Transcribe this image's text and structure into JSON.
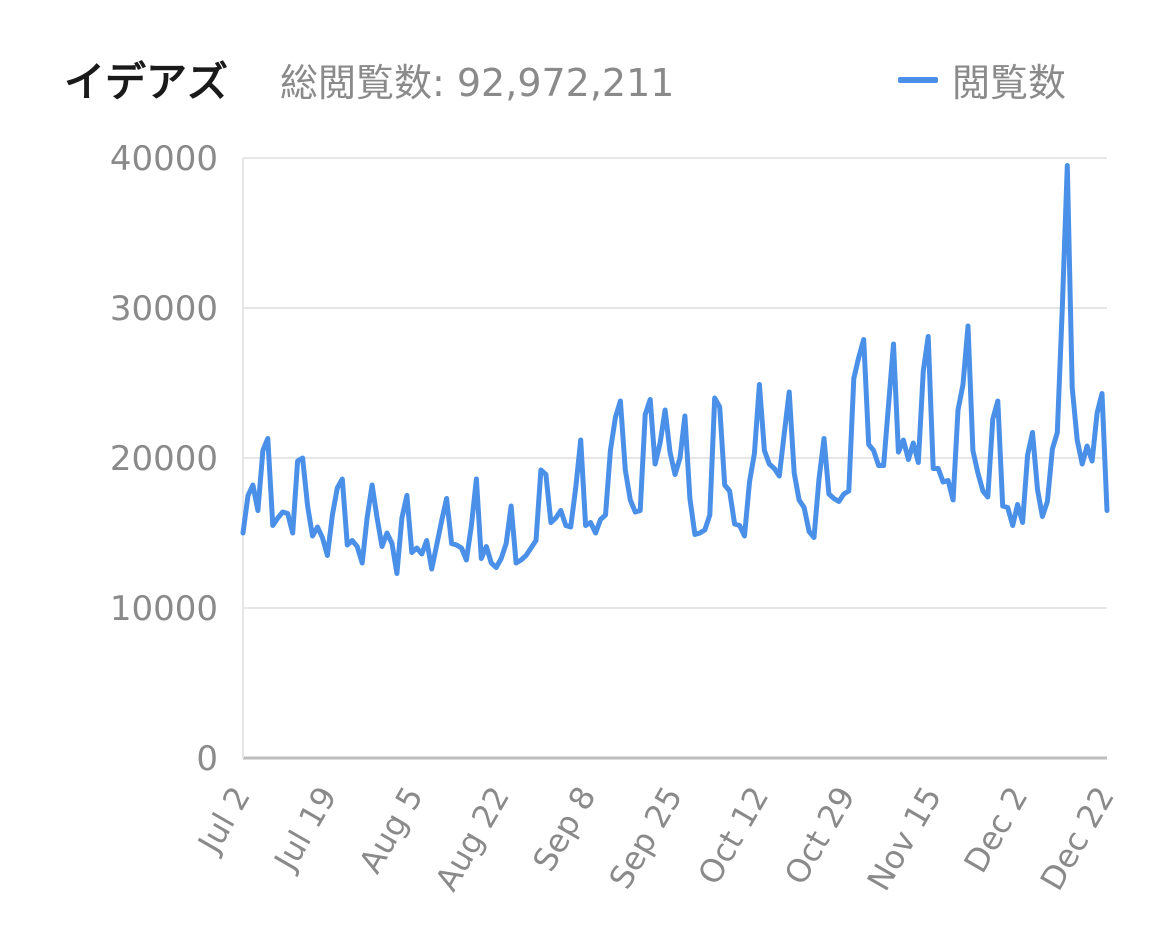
{
  "header": {
    "title": "イデアズ",
    "total_label": "総閲覧数: 92,972,211"
  },
  "chart_data": {
    "type": "line",
    "ylim": [
      0,
      40000
    ],
    "yticks": [
      "0",
      "10000",
      "20000",
      "30000",
      "40000"
    ],
    "grid": true,
    "legend_position": "top-right",
    "x_start": "Jul 2",
    "x_end": "Dec 22",
    "xtick_labels": [
      "Jul 2",
      "Jul 19",
      "Aug 5",
      "Aug 22",
      "Sep 8",
      "Sep 25",
      "Oct 12",
      "Oct 29",
      "Nov 15",
      "Dec 2",
      "Dec 22"
    ],
    "line_color": "#4a90e8",
    "series": [
      {
        "name": "閲覧数",
        "values": [
          15000,
          17500,
          18200,
          16500,
          20500,
          21300,
          15500,
          16000,
          16400,
          16300,
          15000,
          19800,
          20000,
          16800,
          14800,
          15400,
          14700,
          13500,
          16200,
          18000,
          18600,
          14200,
          14500,
          14100,
          13000,
          16000,
          18200,
          16000,
          14100,
          15000,
          14300,
          12300,
          16000,
          17500,
          13700,
          14000,
          13600,
          14500,
          12600,
          14200,
          15800,
          17300,
          14300,
          14200,
          14000,
          13200,
          15500,
          18600,
          13300,
          14100,
          13000,
          12700,
          13300,
          14300,
          16800,
          13000,
          13200,
          13500,
          14000,
          14500,
          19200,
          18900,
          15700,
          16000,
          16500,
          15500,
          15400,
          18000,
          21200,
          15500,
          15700,
          15000,
          15900,
          16200,
          20500,
          22700,
          23800,
          19200,
          17200,
          16400,
          16500,
          22900,
          23900,
          19600,
          21000,
          23200,
          20400,
          18900,
          20000,
          22800,
          17300,
          14900,
          15000,
          15200,
          16200,
          24000,
          23400,
          18200,
          17800,
          15600,
          15500,
          14800,
          18400,
          20300,
          24900,
          20500,
          19600,
          19300,
          18800,
          21600,
          24400,
          19000,
          17200,
          16700,
          15100,
          14700,
          18600,
          21300,
          17600,
          17300,
          17100,
          17600,
          17800,
          25300,
          26700,
          27900,
          20900,
          20500,
          19500,
          19500,
          23500,
          27600,
          20400,
          21200,
          19900,
          21000,
          19700,
          25800,
          28100,
          19300,
          19300,
          18400,
          18500,
          17200,
          23200,
          24900,
          28800,
          20500,
          19000,
          17800,
          17400,
          22600,
          23800,
          16800,
          16700,
          15500,
          16900,
          15700,
          20200,
          21700,
          17900,
          16100,
          17100,
          20600,
          21700,
          30000,
          39500,
          24700,
          21200,
          19600,
          20800,
          19800,
          23000,
          24300,
          16500
        ]
      }
    ]
  }
}
